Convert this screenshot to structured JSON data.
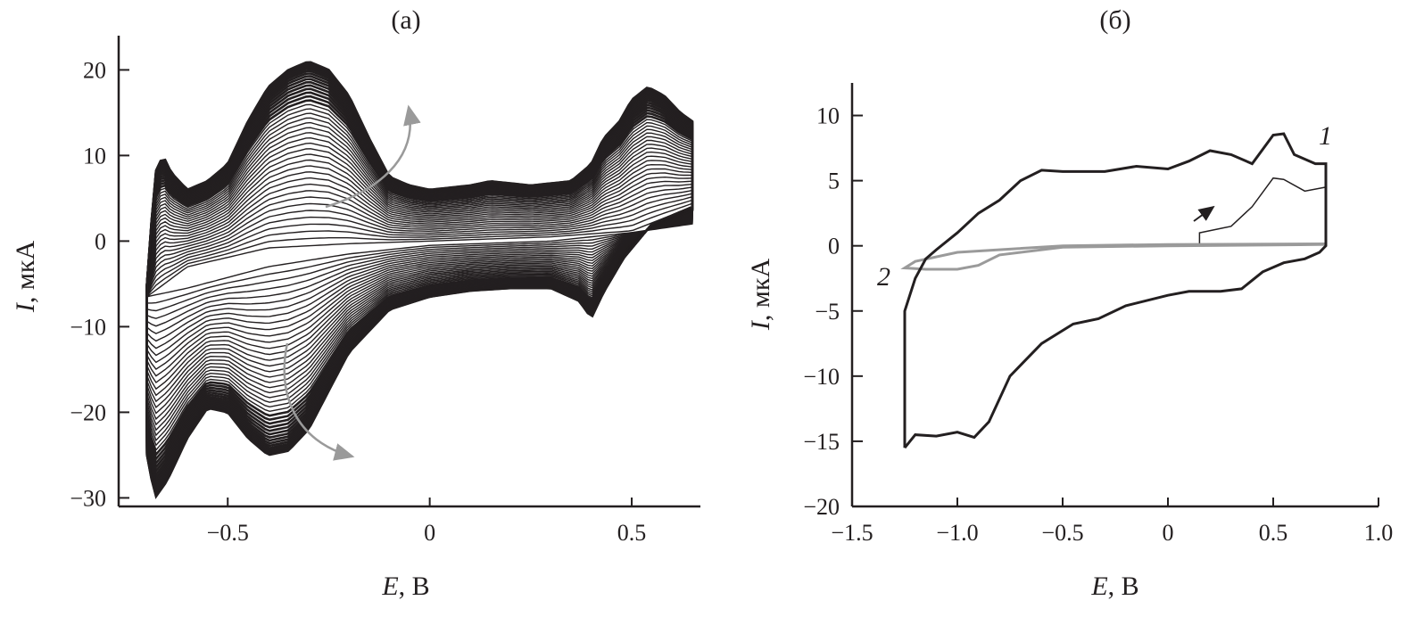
{
  "chart_data": [
    {
      "type": "line",
      "title": "(а)",
      "xlabel_symbol": "E",
      "xlabel_unit": ", В",
      "ylabel_symbol": "I",
      "ylabel_unit": ", мкА",
      "xlim": [
        -0.77,
        0.67
      ],
      "ylim": [
        -31,
        24
      ],
      "xticks": [
        -0.5,
        0,
        0.5
      ],
      "xtick_labels": [
        "−0.5",
        "0",
        "0.5"
      ],
      "yticks": [
        20,
        10,
        0,
        -10,
        -20,
        -30
      ],
      "ytick_labels": [
        "20",
        "10",
        "0",
        "−10",
        "−20",
        "−30"
      ],
      "grid": false,
      "n_cycles": 40,
      "colors": {
        "curves": "#231f20",
        "arrows": "#9a9a9a"
      },
      "series": [
        {
          "role": "first-cycle",
          "anodic": [
            [
              -0.7,
              -6.5
            ],
            [
              -0.6,
              -3
            ],
            [
              -0.4,
              -0.8
            ],
            [
              -0.2,
              -0.3
            ],
            [
              0,
              0
            ],
            [
              0.3,
              0.5
            ],
            [
              0.5,
              1.2
            ],
            [
              0.65,
              4
            ]
          ],
          "cathodic": [
            [
              0.65,
              2
            ],
            [
              0.5,
              1
            ],
            [
              0.3,
              0
            ],
            [
              0,
              -0.5
            ],
            [
              -0.2,
              -1.5
            ],
            [
              -0.4,
              -3
            ],
            [
              -0.6,
              -5.5
            ],
            [
              -0.7,
              -6.5
            ]
          ]
        },
        {
          "role": "last-cycle",
          "anodic": [
            [
              -0.7,
              -5
            ],
            [
              -0.68,
              8
            ],
            [
              -0.66,
              10
            ],
            [
              -0.64,
              8
            ],
            [
              -0.6,
              6
            ],
            [
              -0.55,
              7
            ],
            [
              -0.5,
              9
            ],
            [
              -0.45,
              14
            ],
            [
              -0.4,
              18
            ],
            [
              -0.35,
              20
            ],
            [
              -0.3,
              21
            ],
            [
              -0.25,
              20
            ],
            [
              -0.2,
              17
            ],
            [
              -0.15,
              12
            ],
            [
              -0.1,
              7.5
            ],
            [
              -0.05,
              6.5
            ],
            [
              0,
              6
            ],
            [
              0.1,
              6.5
            ],
            [
              0.15,
              7
            ],
            [
              0.25,
              6.5
            ],
            [
              0.35,
              7
            ],
            [
              0.4,
              9
            ],
            [
              0.43,
              12
            ],
            [
              0.47,
              14
            ],
            [
              0.5,
              16.5
            ],
            [
              0.54,
              18
            ],
            [
              0.58,
              17
            ],
            [
              0.62,
              15
            ],
            [
              0.65,
              14
            ]
          ],
          "cathodic": [
            [
              0.65,
              4
            ],
            [
              0.55,
              2
            ],
            [
              0.48,
              -2
            ],
            [
              0.43,
              -6
            ],
            [
              0.4,
              -9
            ],
            [
              0.37,
              -7
            ],
            [
              0.3,
              -5.5
            ],
            [
              0.2,
              -5.5
            ],
            [
              0.1,
              -5.8
            ],
            [
              0,
              -6.5
            ],
            [
              -0.1,
              -8
            ],
            [
              -0.2,
              -13
            ],
            [
              -0.3,
              -22
            ],
            [
              -0.35,
              -24.5
            ],
            [
              -0.4,
              -25
            ],
            [
              -0.45,
              -23
            ],
            [
              -0.5,
              -20
            ],
            [
              -0.55,
              -19.5
            ],
            [
              -0.6,
              -23
            ],
            [
              -0.65,
              -28
            ],
            [
              -0.68,
              -30
            ],
            [
              -0.7,
              -25
            ]
          ]
        }
      ]
    },
    {
      "type": "line",
      "title": "(б)",
      "xlabel_symbol": "E",
      "xlabel_unit": ", В",
      "ylabel_symbol": "I",
      "ylabel_unit": ", мкА",
      "xlim": [
        -1.5,
        1.0
      ],
      "ylim": [
        -20,
        12.5
      ],
      "xticks": [
        -1.5,
        -1.0,
        -0.5,
        0,
        0.5,
        1.0
      ],
      "xtick_labels": [
        "−1.5",
        "−1.0",
        "−0.5",
        "0",
        "0.5",
        "1.0"
      ],
      "yticks": [
        10,
        5,
        0,
        -5,
        -10,
        -15,
        -20
      ],
      "ytick_labels": [
        "10",
        "5",
        "0",
        "−5",
        "−10",
        "−15",
        "−20"
      ],
      "grid": false,
      "series": [
        {
          "name": "1",
          "color": "#231f20",
          "points": [
            [
              -1.25,
              -15.5
            ],
            [
              -1.25,
              -5
            ],
            [
              -1.2,
              -2.5
            ],
            [
              -1.15,
              -1
            ],
            [
              -1.1,
              -0.3
            ],
            [
              -1.0,
              1
            ],
            [
              -0.9,
              2.5
            ],
            [
              -0.8,
              3.5
            ],
            [
              -0.7,
              5
            ],
            [
              -0.6,
              5.8
            ],
            [
              -0.5,
              5.7
            ],
            [
              -0.3,
              5.7
            ],
            [
              -0.15,
              6.1
            ],
            [
              0,
              5.9
            ],
            [
              0.1,
              6.5
            ],
            [
              0.2,
              7.3
            ],
            [
              0.3,
              7
            ],
            [
              0.4,
              6.3
            ],
            [
              0.5,
              8.5
            ],
            [
              0.55,
              8.6
            ],
            [
              0.6,
              7
            ],
            [
              0.7,
              6.3
            ],
            [
              0.75,
              6.3
            ],
            [
              0.75,
              6
            ],
            [
              0.75,
              0
            ],
            [
              0.72,
              -0.5
            ],
            [
              0.65,
              -1
            ],
            [
              0.55,
              -1.3
            ],
            [
              0.45,
              -2
            ],
            [
              0.35,
              -3.3
            ],
            [
              0.25,
              -3.5
            ],
            [
              0.1,
              -3.5
            ],
            [
              0,
              -3.8
            ],
            [
              -0.2,
              -4.6
            ],
            [
              -0.33,
              -5.6
            ],
            [
              -0.45,
              -6
            ],
            [
              -0.6,
              -7.5
            ],
            [
              -0.75,
              -10
            ],
            [
              -0.85,
              -13.5
            ],
            [
              -0.92,
              -14.7
            ],
            [
              -1.0,
              -14.3
            ],
            [
              -1.1,
              -14.6
            ],
            [
              -1.2,
              -14.5
            ],
            [
              -1.25,
              -15.5
            ]
          ],
          "first_sweep": [
            [
              0.15,
              0.2
            ],
            [
              0.15,
              1
            ],
            [
              0.3,
              1.5
            ],
            [
              0.4,
              3
            ],
            [
              0.5,
              5.2
            ],
            [
              0.55,
              5.1
            ],
            [
              0.65,
              4.2
            ],
            [
              0.75,
              4.5
            ]
          ]
        },
        {
          "name": "2",
          "color": "#9a9a9a",
          "points": [
            [
              0.75,
              0.15
            ],
            [
              0,
              0.1
            ],
            [
              -0.5,
              0
            ],
            [
              -1,
              -0.5
            ],
            [
              -1.2,
              -1.2
            ],
            [
              -1.25,
              -1.7
            ],
            [
              -1.15,
              -1.8
            ],
            [
              -1.0,
              -1.8
            ],
            [
              -0.9,
              -1.5
            ],
            [
              -0.8,
              -0.7
            ],
            [
              -0.5,
              -0.1
            ],
            [
              0,
              0
            ],
            [
              0.75,
              0.1
            ]
          ]
        }
      ]
    }
  ]
}
